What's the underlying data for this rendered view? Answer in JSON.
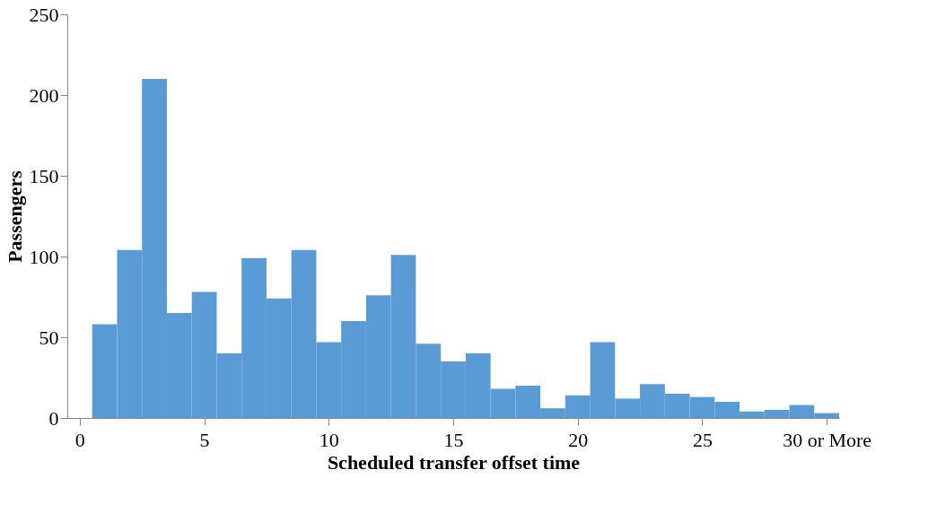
{
  "chart_data": {
    "type": "histogram",
    "xlabel": "Scheduled transfer offset time",
    "ylabel": "Passengers",
    "color": "#5b9bd5",
    "bins": [
      -0.5,
      0.5,
      1.5,
      2.5,
      3.5,
      4.5,
      5.5,
      6.5,
      7.5,
      8.5,
      9.5,
      10.5,
      11.5,
      12.5,
      13.5,
      14.5,
      15.5,
      16.5,
      17.5,
      18.5,
      19.5,
      20.5,
      21.5,
      22.5,
      23.5,
      24.5,
      25.5,
      26.5,
      27.5,
      28.5,
      29.5,
      30.5
    ],
    "values": [
      0,
      58,
      104,
      210,
      65,
      78,
      40,
      99,
      74,
      104,
      47,
      60,
      76,
      101,
      46,
      35,
      40,
      18,
      20,
      6,
      14,
      47,
      12,
      21,
      15,
      13,
      10,
      4,
      5,
      8,
      3
    ],
    "xlim": [
      -0.5,
      30.5
    ],
    "xticks": [
      0,
      5,
      10,
      15,
      20,
      25,
      {
        "value": 30,
        "label": "30 or More"
      }
    ],
    "ylim": [
      0,
      250
    ],
    "yticks": [
      0,
      50,
      100,
      150,
      200,
      250
    ],
    "grid": false
  }
}
